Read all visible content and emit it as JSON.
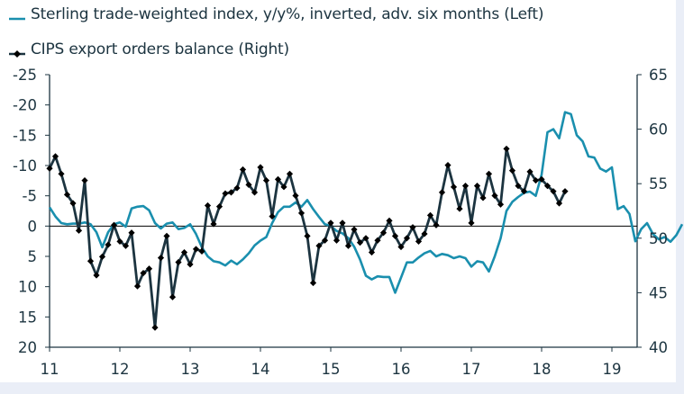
{
  "chart_data": {
    "type": "line",
    "title": "",
    "legend_position": "top-left",
    "colors": {
      "sterling": "#1a8fae",
      "cips": "#1c3440",
      "axis": "#1c3440",
      "zero_line": "#000000",
      "background_band": "#eaeef7"
    },
    "x_axis": {
      "ticks": [
        "11",
        "12",
        "13",
        "14",
        "15",
        "16",
        "17",
        "18",
        "19"
      ],
      "range": [
        2011.0,
        2019.3
      ]
    },
    "left_axis": {
      "label": "",
      "inverted": true,
      "range": [
        -25,
        20
      ],
      "ticks": [
        "-25",
        "-20",
        "-15",
        "-10",
        "-5",
        "0",
        "5",
        "10",
        "15",
        "20"
      ]
    },
    "right_axis": {
      "label": "",
      "range": [
        40,
        65
      ],
      "ticks": [
        "65",
        "60",
        "55",
        "50",
        "45",
        "40"
      ]
    },
    "series": [
      {
        "name": "Sterling trade-weighted index, y/y%, inverted, adv. six months (Left)",
        "axis": "left",
        "marker": "none",
        "start": 2011.0,
        "step_months": 1,
        "values": [
          -3.1,
          -1.6,
          -0.5,
          -0.3,
          -0.4,
          -0.4,
          -0.6,
          -0.3,
          1.0,
          3.5,
          1.0,
          -0.3,
          -0.6,
          0.1,
          -2.9,
          -3.2,
          -3.3,
          -2.6,
          -0.5,
          0.4,
          -0.4,
          -0.6,
          0.5,
          0.3,
          -0.3,
          1.3,
          3.5,
          5.0,
          5.8,
          6.0,
          6.5,
          5.7,
          6.3,
          5.5,
          4.5,
          3.2,
          2.4,
          1.8,
          -0.5,
          -2.3,
          -3.2,
          -3.2,
          -3.9,
          -3.2,
          -4.3,
          -2.8,
          -1.5,
          -0.3,
          0.0,
          0.8,
          1.2,
          2.0,
          3.4,
          5.5,
          8.2,
          8.8,
          8.3,
          8.4,
          8.4,
          11.0,
          8.5,
          6.0,
          6.0,
          5.2,
          4.5,
          4.1,
          5.0,
          4.6,
          4.8,
          5.3,
          5.0,
          5.3,
          6.7,
          5.8,
          6.0,
          7.5,
          5.0,
          2.0,
          -2.5,
          -4.0,
          -4.8,
          -5.5,
          -5.7,
          -5.0,
          -8.5,
          -15.5,
          -16.0,
          -14.5,
          -18.8,
          -18.5,
          -15.0,
          -14.0,
          -11.5,
          -11.3,
          -9.5,
          -9.0,
          -9.7,
          -2.8,
          -3.3,
          -2.0,
          2.5,
          0.5,
          -0.5,
          1.3,
          2.2,
          1.8,
          2.6,
          1.5,
          -0.3
        ]
      },
      {
        "name": "CIPS export orders balance (Right)",
        "axis": "right",
        "marker": "diamond",
        "start": 2011.0,
        "step_months": 1,
        "values": [
          56.4,
          57.5,
          55.9,
          54.0,
          53.2,
          50.7,
          55.3,
          47.9,
          46.6,
          48.3,
          49.4,
          51.2,
          49.7,
          49.3,
          50.5,
          45.6,
          46.8,
          47.2,
          41.8,
          48.2,
          50.2,
          44.6,
          47.8,
          48.7,
          47.6,
          49.0,
          48.8,
          53.0,
          51.3,
          52.9,
          54.1,
          54.2,
          54.6,
          56.3,
          54.9,
          54.2,
          56.5,
          55.3,
          52.0,
          55.4,
          54.7,
          55.9,
          53.9,
          52.3,
          50.2,
          45.9,
          49.3,
          49.8,
          51.4,
          49.8,
          51.4,
          49.3,
          50.8,
          49.6,
          50.0,
          48.7,
          49.8,
          50.5,
          51.6,
          50.2,
          49.2,
          50.0,
          51.0,
          49.7,
          50.4,
          52.1,
          51.2,
          54.2,
          56.7,
          54.7,
          52.7,
          54.8,
          51.4,
          54.8,
          53.7,
          55.9,
          53.9,
          53.1,
          58.2,
          56.2,
          54.8,
          54.3,
          56.1,
          55.3,
          55.4,
          54.8,
          54.3,
          53.2,
          54.3
        ]
      }
    ]
  },
  "legend": {
    "items": [
      {
        "label": "Sterling trade-weighted index, y/y%, inverted, adv. six months (Left)"
      },
      {
        "label": "CIPS export orders balance (Right)"
      }
    ]
  }
}
